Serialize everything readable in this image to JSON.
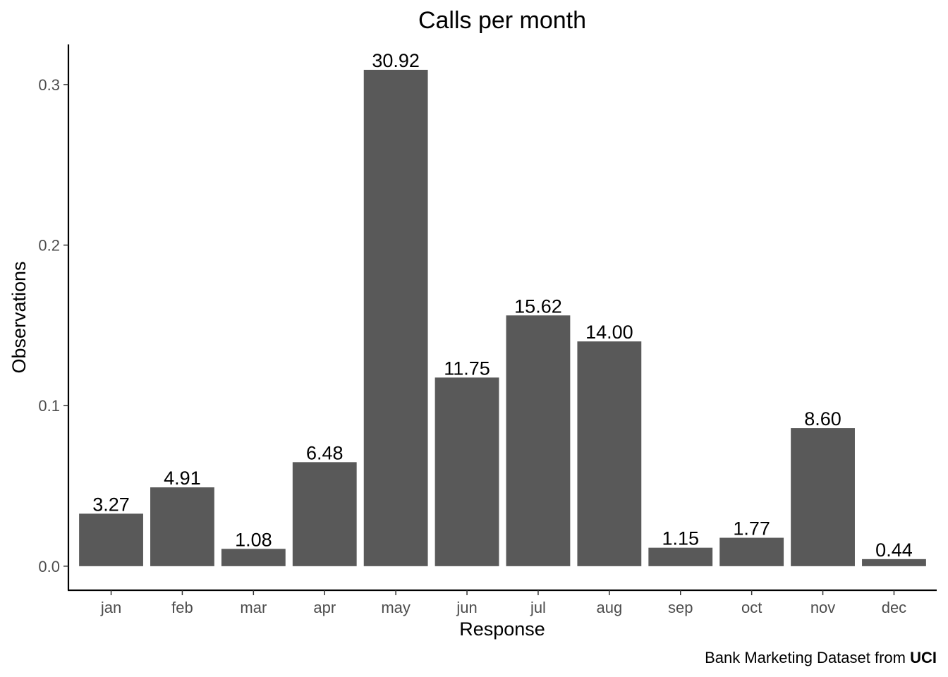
{
  "chart_data": {
    "type": "bar",
    "title": "Calls per month",
    "xlabel": "Response",
    "ylabel": "Observations",
    "categories": [
      "jan",
      "feb",
      "mar",
      "apr",
      "may",
      "jun",
      "jul",
      "aug",
      "sep",
      "oct",
      "nov",
      "dec"
    ],
    "values": [
      0.0327,
      0.0491,
      0.0108,
      0.0648,
      0.3092,
      0.1175,
      0.1562,
      0.14,
      0.0115,
      0.0177,
      0.086,
      0.0044
    ],
    "data_labels": [
      "3.27",
      "4.91",
      "1.08",
      "6.48",
      "30.92",
      "11.75",
      "15.62",
      "14.00",
      "1.15",
      "1.77",
      "8.60",
      "0.44"
    ],
    "yticks": [
      0.0,
      0.1,
      0.2,
      0.3
    ],
    "ytick_labels": [
      "0.0",
      "0.1",
      "0.2",
      "0.3"
    ],
    "ylim": [
      -0.015,
      0.325
    ],
    "grid": false,
    "legend": "none",
    "bar_color": "#595959",
    "caption": {
      "text": "Bank Marketing Dataset from ",
      "bold": "UCI"
    }
  }
}
